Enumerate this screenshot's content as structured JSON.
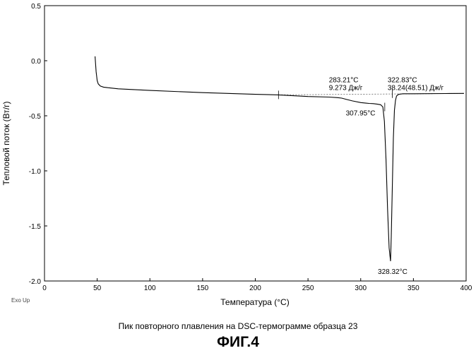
{
  "chart_data": {
    "type": "line",
    "title": "",
    "xlabel": "Температура (°C)",
    "ylabel": "Тепловой поток (Вт/г)",
    "xlim": [
      0,
      400
    ],
    "ylim": [
      -2.0,
      0.5
    ],
    "x_ticks": [
      "0",
      "50",
      "100",
      "150",
      "200",
      "250",
      "300",
      "350",
      "400"
    ],
    "y_ticks": [
      "0.5",
      "0.0",
      "-0.5",
      "-1.0",
      "-1.5",
      "-2.0"
    ],
    "grid": false,
    "corner_note": "Exo Up",
    "series": [
      {
        "x": [
          48,
          49,
          50,
          51,
          53,
          56,
          60,
          70,
          100,
          150,
          200,
          222,
          250,
          270,
          278,
          282,
          286,
          292,
          300,
          305,
          308,
          312,
          316,
          319,
          321,
          322.5,
          324,
          325.5,
          327,
          328.3,
          329,
          330,
          331,
          332,
          333,
          334,
          336,
          340,
          350,
          380,
          398
        ],
        "y": [
          0.04,
          -0.1,
          -0.18,
          -0.21,
          -0.23,
          -0.24,
          -0.245,
          -0.255,
          -0.27,
          -0.29,
          -0.305,
          -0.31,
          -0.325,
          -0.33,
          -0.335,
          -0.34,
          -0.35,
          -0.365,
          -0.38,
          -0.385,
          -0.388,
          -0.39,
          -0.395,
          -0.4,
          -0.42,
          -0.55,
          -0.9,
          -1.35,
          -1.7,
          -1.82,
          -1.6,
          -1.15,
          -0.7,
          -0.45,
          -0.36,
          -0.32,
          -0.305,
          -0.3,
          -0.3,
          -0.298,
          -0.297
        ]
      }
    ],
    "baseline": {
      "x": [
        222,
        398
      ],
      "y": [
        -0.31,
        -0.297
      ]
    },
    "annotations": [
      {
        "lines": [
          "283.21°C",
          "9.273 Дж/г"
        ],
        "x": 283.21,
        "y": -0.335
      },
      {
        "lines": [
          "307.95°C"
        ],
        "x": 307.95,
        "y": -0.388
      },
      {
        "lines": [
          "322.83°C",
          "38.24(48.51) Дж/г"
        ],
        "x": 322.83,
        "y": -0.42
      },
      {
        "lines": [
          "328.32°C"
        ],
        "x": 328.32,
        "y": -1.82
      }
    ]
  },
  "caption": "Пик повторного плавления на DSC-термограмме образца 23",
  "figure_label": "ФИГ.4"
}
